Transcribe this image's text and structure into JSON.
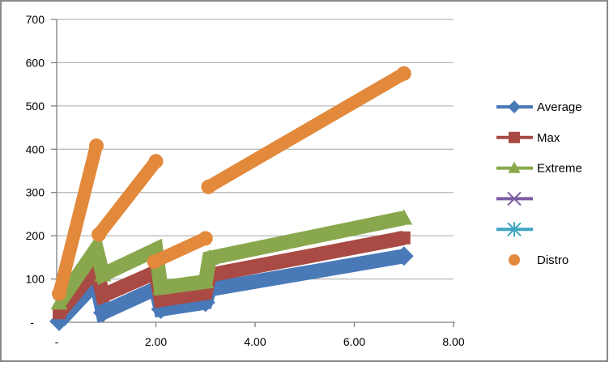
{
  "chart_data": {
    "type": "line",
    "title": "",
    "xlabel": "",
    "ylabel": "",
    "grid": true,
    "x_axis": {
      "range": [
        0,
        8
      ],
      "ticks": [
        {
          "v": 0,
          "label": "-"
        },
        {
          "v": 2,
          "label": "2.00"
        },
        {
          "v": 4,
          "label": "4.00"
        },
        {
          "v": 6,
          "label": "6.00"
        },
        {
          "v": 8,
          "label": "8.00"
        }
      ]
    },
    "y_axis": {
      "range": [
        0,
        700
      ],
      "ticks": [
        {
          "v": 0,
          "label": "-"
        },
        {
          "v": 100,
          "label": "100"
        },
        {
          "v": 200,
          "label": "200"
        },
        {
          "v": 300,
          "label": "300"
        },
        {
          "v": 400,
          "label": "400"
        },
        {
          "v": 500,
          "label": "500"
        },
        {
          "v": 600,
          "label": "600"
        },
        {
          "v": 700,
          "label": "700"
        }
      ]
    },
    "series": [
      {
        "name": "Average",
        "color": "#4A79B8",
        "marker": "diamond",
        "segments": [
          [
            [
              0.05,
              2
            ],
            [
              0.8,
              93
            ],
            [
              0.93,
              22
            ],
            [
              2.0,
              78
            ],
            [
              2.1,
              30
            ],
            [
              3.0,
              46
            ],
            [
              3.08,
              76
            ],
            [
              7.0,
              153
            ]
          ]
        ]
      },
      {
        "name": "Max",
        "color": "#A94A44",
        "marker": "square",
        "segments": [
          [
            [
              0.05,
              22
            ],
            [
              0.8,
              126
            ],
            [
              0.93,
              62
            ],
            [
              2.0,
              116
            ],
            [
              2.1,
              52
            ],
            [
              3.0,
              68
            ],
            [
              3.08,
              109
            ],
            [
              7.0,
              195
            ]
          ]
        ]
      },
      {
        "name": "Extreme",
        "color": "#89A84D",
        "marker": "triangle",
        "segments": [
          [
            [
              0.05,
              45
            ],
            [
              0.8,
              170
            ],
            [
              0.93,
              110
            ],
            [
              2.0,
              168
            ],
            [
              2.1,
              80
            ],
            [
              3.0,
              94
            ],
            [
              3.08,
              148
            ],
            [
              7.0,
              241
            ]
          ]
        ]
      },
      {
        "name": "",
        "color": "#7B5CA2",
        "marker": "x",
        "segments": []
      },
      {
        "name": "",
        "color": "#3FA5C1",
        "marker": "asterisk",
        "segments": []
      },
      {
        "name": "Distro",
        "color": "#E2893C",
        "marker": "circle",
        "segments": [
          [
            [
              0.05,
              66
            ],
            [
              0.8,
              408
            ]
          ],
          [
            [
              0.85,
              203
            ],
            [
              2.0,
              372
            ]
          ],
          [
            [
              1.97,
              140
            ],
            [
              3.0,
              194
            ]
          ],
          [
            [
              3.06,
              313
            ],
            [
              7.0,
              575
            ]
          ]
        ]
      }
    ],
    "legend": {
      "position": "right",
      "items": [
        {
          "label": "Average",
          "color": "#4A79B8",
          "marker": "diamond",
          "line": true
        },
        {
          "label": "Max",
          "color": "#A94A44",
          "marker": "square",
          "line": true
        },
        {
          "label": "Extreme",
          "color": "#89A84D",
          "marker": "triangle",
          "line": true
        },
        {
          "label": "",
          "color": "#7B5CA2",
          "marker": "x",
          "line": true
        },
        {
          "label": "",
          "color": "#3FA5C1",
          "marker": "asterisk",
          "line": true
        },
        {
          "label": "Distro",
          "color": "#E2893C",
          "marker": "circle",
          "line": false
        }
      ]
    }
  },
  "colors": {
    "background": "#FFFFFF",
    "gridline": "#A6A6A6",
    "axis": "#808080",
    "frame_border": "#8A8A8A",
    "text": "#000000"
  }
}
